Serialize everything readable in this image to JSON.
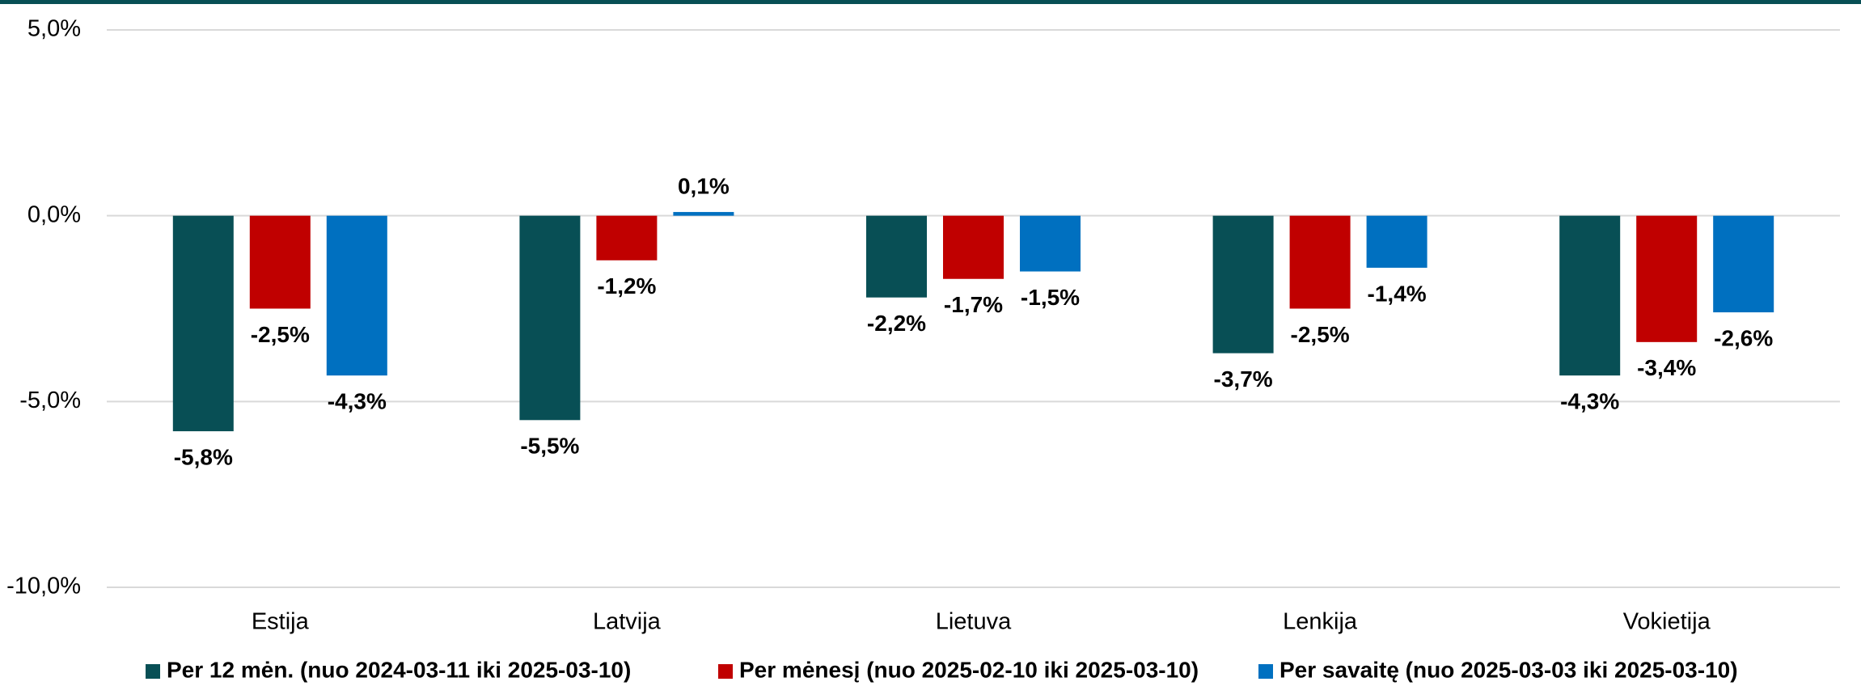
{
  "chart_data": {
    "type": "bar",
    "categories": [
      "Estija",
      "Latvija",
      "Lietuva",
      "Lenkija",
      "Vokietija"
    ],
    "series": [
      {
        "name": "Per 12 mėn. (nuo 2024-03-11 iki 2025-03-10)",
        "color": "#084f55",
        "label_color": "#084f55",
        "values": [
          -5.8,
          -5.5,
          -2.2,
          -3.7,
          -4.3
        ],
        "value_labels": [
          "-5,8%",
          "-5,5%",
          "-2,2%",
          "-3,7%",
          "-4,3%"
        ]
      },
      {
        "name": "Per mėnesį (nuo 2025-02-10 iki 2025-03-10)",
        "color": "#c00000",
        "label_color": "#c00000",
        "values": [
          -2.5,
          -1.2,
          -1.7,
          -2.5,
          -3.4
        ],
        "value_labels": [
          "-2,5%",
          "-1,2%",
          "-1,7%",
          "-2,5%",
          "-3,4%"
        ]
      },
      {
        "name": "Per savaitę (nuo 2025-03-03 iki 2025-03-10)",
        "color": "#0070c0",
        "label_color": "#4472c4",
        "values": [
          -4.3,
          0.1,
          -1.5,
          -1.4,
          -2.6
        ],
        "value_labels": [
          "-4,3%",
          "0,1%",
          "-1,5%",
          "-1,4%",
          "-2,6%"
        ]
      }
    ],
    "ylim": [
      -10,
      5
    ],
    "yticks": [
      {
        "value": -10,
        "label": "-10,0%"
      },
      {
        "value": -5,
        "label": "-5,0%"
      },
      {
        "value": 0,
        "label": "0,0%"
      },
      {
        "value": 5,
        "label": "5,0%"
      }
    ],
    "grid": true,
    "legend": "bottom"
  }
}
